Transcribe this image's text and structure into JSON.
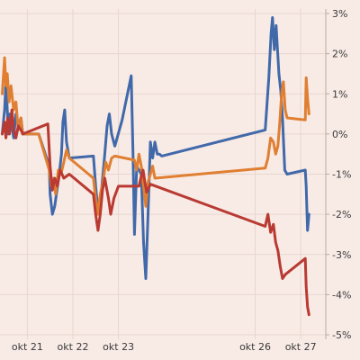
{
  "chart_data": {
    "type": "line",
    "title": "",
    "xlabel": "",
    "ylabel": "",
    "ylim": [
      -5,
      3
    ],
    "y_ticks": [
      3,
      2,
      1,
      0,
      -1,
      -2,
      -3,
      -4,
      -5
    ],
    "y_tick_format": "percent",
    "y_axis_position": "right",
    "x_ticks": [
      {
        "label": "okt 21",
        "at": 0.5
      },
      {
        "label": "okt 22",
        "at": 1.5
      },
      {
        "label": "okt 23",
        "at": 2.5
      },
      {
        "label": "okt 26",
        "at": 5.5
      },
      {
        "label": "okt 27",
        "at": 6.5
      }
    ],
    "grid": true,
    "colors": {
      "background": "#f8ebe6",
      "grid": "#e7d6cf",
      "series_blue": "#4169aa",
      "series_orange": "#e07f32",
      "series_red": "#b93a32"
    },
    "series": [
      {
        "color": "#4169aa",
        "points": [
          [
            -0.05,
            0.0
          ],
          [
            0.0,
            0.6
          ],
          [
            0.03,
            1.3
          ],
          [
            0.06,
            0.6
          ],
          [
            0.09,
            0.0
          ],
          [
            0.12,
            0.5
          ],
          [
            0.16,
            0.2
          ],
          [
            0.2,
            -0.1
          ],
          [
            0.25,
            0.5
          ],
          [
            0.3,
            0.2
          ],
          [
            0.36,
            0.4
          ],
          [
            0.4,
            0.0
          ],
          [
            0.75,
            0.0
          ],
          [
            0.98,
            -0.8
          ],
          [
            1.0,
            -1.5
          ],
          [
            1.05,
            -2.0
          ],
          [
            1.1,
            -1.8
          ],
          [
            1.15,
            -1.4
          ],
          [
            1.2,
            -1.0
          ],
          [
            1.25,
            -0.5
          ],
          [
            1.28,
            0.3
          ],
          [
            1.32,
            0.6
          ],
          [
            1.36,
            -0.2
          ],
          [
            1.42,
            -0.6
          ],
          [
            1.95,
            -0.55
          ],
          [
            2.0,
            -1.3
          ],
          [
            2.05,
            -1.9
          ],
          [
            2.12,
            -1.5
          ],
          [
            2.2,
            -0.5
          ],
          [
            2.25,
            0.2
          ],
          [
            2.3,
            0.5
          ],
          [
            2.35,
            0.0
          ],
          [
            2.42,
            -0.3
          ],
          [
            2.58,
            0.35
          ],
          [
            2.78,
            1.45
          ],
          [
            2.82,
            -0.5
          ],
          [
            2.85,
            -2.5
          ],
          [
            2.9,
            -0.8
          ],
          [
            3.0,
            -1.0
          ],
          [
            3.05,
            -2.7
          ],
          [
            3.1,
            -3.6
          ],
          [
            3.15,
            -2.0
          ],
          [
            3.2,
            -0.2
          ],
          [
            3.25,
            -0.6
          ],
          [
            3.3,
            -0.2
          ],
          [
            3.35,
            -0.5
          ],
          [
            3.4,
            -0.5
          ],
          [
            3.45,
            -0.55
          ],
          [
            5.72,
            0.1
          ],
          [
            5.8,
            1.4
          ],
          [
            5.85,
            2.5
          ],
          [
            5.88,
            2.9
          ],
          [
            5.92,
            2.1
          ],
          [
            5.96,
            2.7
          ],
          [
            6.02,
            1.5
          ],
          [
            6.06,
            1.1
          ],
          [
            6.1,
            0.4
          ],
          [
            6.15,
            -0.9
          ],
          [
            6.2,
            -1.0
          ],
          [
            6.6,
            -0.9
          ],
          [
            6.62,
            -1.3
          ],
          [
            6.65,
            -2.4
          ],
          [
            6.68,
            -2.0
          ]
        ]
      },
      {
        "color": "#e07f32",
        "points": [
          [
            -0.05,
            1.0
          ],
          [
            0.0,
            1.9
          ],
          [
            0.03,
            1.2
          ],
          [
            0.06,
            1.5
          ],
          [
            0.1,
            0.8
          ],
          [
            0.14,
            1.2
          ],
          [
            0.2,
            0.6
          ],
          [
            0.25,
            0.8
          ],
          [
            0.3,
            0.1
          ],
          [
            0.36,
            0.4
          ],
          [
            0.4,
            0.0
          ],
          [
            0.75,
            0.0
          ],
          [
            0.98,
            -0.9
          ],
          [
            1.03,
            -1.3
          ],
          [
            1.08,
            -1.1
          ],
          [
            1.12,
            -1.5
          ],
          [
            1.18,
            -0.9
          ],
          [
            1.24,
            -1.0
          ],
          [
            1.3,
            -0.7
          ],
          [
            1.36,
            -0.4
          ],
          [
            1.42,
            -0.6
          ],
          [
            1.95,
            -1.1
          ],
          [
            2.0,
            -1.6
          ],
          [
            2.05,
            -2.0
          ],
          [
            2.1,
            -1.5
          ],
          [
            2.16,
            -1.2
          ],
          [
            2.22,
            -0.7
          ],
          [
            2.28,
            -0.9
          ],
          [
            2.35,
            -0.6
          ],
          [
            2.42,
            -0.55
          ],
          [
            2.85,
            -0.65
          ],
          [
            2.9,
            -0.9
          ],
          [
            2.95,
            -0.5
          ],
          [
            3.0,
            -0.8
          ],
          [
            3.05,
            -1.3
          ],
          [
            3.1,
            -1.8
          ],
          [
            3.15,
            -1.2
          ],
          [
            3.2,
            -1.0
          ],
          [
            3.25,
            -0.8
          ],
          [
            3.3,
            -1.1
          ],
          [
            5.72,
            -0.85
          ],
          [
            5.78,
            -0.6
          ],
          [
            5.84,
            -0.1
          ],
          [
            5.9,
            -0.2
          ],
          [
            5.95,
            -0.5
          ],
          [
            6.0,
            -0.3
          ],
          [
            6.04,
            0.3
          ],
          [
            6.08,
            1.0
          ],
          [
            6.12,
            1.3
          ],
          [
            6.16,
            0.6
          ],
          [
            6.2,
            0.4
          ],
          [
            6.6,
            0.35
          ],
          [
            6.62,
            1.4
          ],
          [
            6.65,
            0.9
          ],
          [
            6.68,
            0.5
          ]
        ]
      },
      {
        "color": "#b93a32",
        "points": [
          [
            -0.05,
            0.0
          ],
          [
            0.0,
            0.3
          ],
          [
            0.03,
            -0.1
          ],
          [
            0.07,
            0.4
          ],
          [
            0.11,
            0.0
          ],
          [
            0.16,
            0.6
          ],
          [
            0.2,
            0.1
          ],
          [
            0.25,
            -0.1
          ],
          [
            0.3,
            0.2
          ],
          [
            0.36,
            0.1
          ],
          [
            0.4,
            0.0
          ],
          [
            0.95,
            0.25
          ],
          [
            1.0,
            -0.8
          ],
          [
            1.05,
            -1.4
          ],
          [
            1.1,
            -1.1
          ],
          [
            1.16,
            -1.3
          ],
          [
            1.22,
            -0.9
          ],
          [
            1.3,
            -1.1
          ],
          [
            1.42,
            -1.0
          ],
          [
            1.95,
            -1.5
          ],
          [
            2.0,
            -2.0
          ],
          [
            2.05,
            -2.4
          ],
          [
            2.1,
            -2.0
          ],
          [
            2.15,
            -1.4
          ],
          [
            2.2,
            -1.1
          ],
          [
            2.28,
            -1.6
          ],
          [
            2.33,
            -2.0
          ],
          [
            2.4,
            -1.6
          ],
          [
            2.5,
            -1.3
          ],
          [
            2.95,
            -1.3
          ],
          [
            3.0,
            -1.05
          ],
          [
            3.04,
            -0.9
          ],
          [
            3.08,
            -1.2
          ],
          [
            3.12,
            -1.45
          ],
          [
            3.2,
            -1.25
          ],
          [
            5.72,
            -2.3
          ],
          [
            5.78,
            -2.0
          ],
          [
            5.84,
            -2.45
          ],
          [
            5.9,
            -2.25
          ],
          [
            5.95,
            -2.7
          ],
          [
            6.0,
            -2.9
          ],
          [
            6.05,
            -3.3
          ],
          [
            6.1,
            -3.6
          ],
          [
            6.16,
            -3.5
          ],
          [
            6.6,
            -3.1
          ],
          [
            6.62,
            -3.8
          ],
          [
            6.65,
            -4.3
          ],
          [
            6.68,
            -4.5
          ]
        ]
      }
    ]
  }
}
